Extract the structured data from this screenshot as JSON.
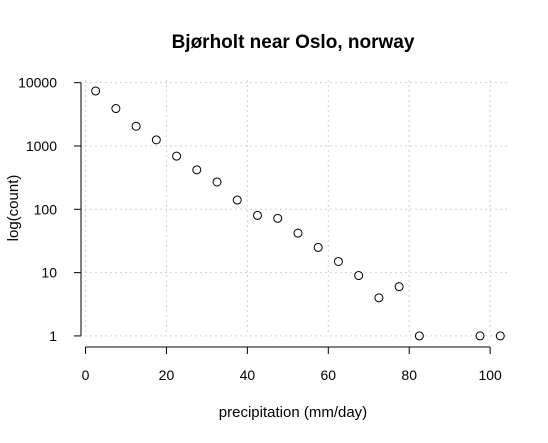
{
  "chart_data": {
    "type": "scatter",
    "title": "Bjørholt near Oslo, norway",
    "xlabel": "precipitation (mm/day)",
    "ylabel": "log(count)",
    "xlim": [
      -2.6,
      105.4
    ],
    "ylim_log10": [
      -0.08,
      4.2
    ],
    "y_scale": "log",
    "grid": true,
    "x_ticks": [
      0,
      20,
      40,
      60,
      80,
      100
    ],
    "x_tick_labels": [
      "0",
      "20",
      "40",
      "60",
      "80",
      "100"
    ],
    "y_ticks": [
      1,
      10,
      100,
      1000,
      10000
    ],
    "y_tick_labels": [
      "1",
      "10",
      "100",
      "1000",
      "10000"
    ],
    "x": [
      2.5,
      7.5,
      12.5,
      17.5,
      22.5,
      27.5,
      32.5,
      37.5,
      42.5,
      47.5,
      52.5,
      57.5,
      62.5,
      67.5,
      72.5,
      77.5,
      82.5,
      97.5,
      102.5
    ],
    "y": [
      7400,
      3900,
      2050,
      1250,
      690,
      420,
      270,
      140,
      80,
      72,
      42,
      25,
      15,
      9,
      4,
      6,
      1,
      1,
      1
    ]
  }
}
